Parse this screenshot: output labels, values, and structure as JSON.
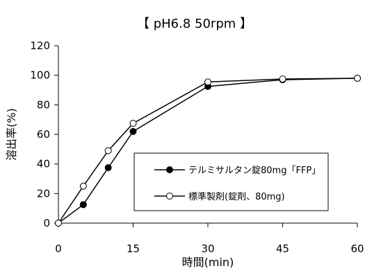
{
  "chart_data": {
    "type": "line",
    "title": "【  pH6.8   50rpm  】",
    "xlabel": "時間(min)",
    "ylabel": "溶出率(%)",
    "xlim": [
      0,
      60
    ],
    "ylim": [
      0,
      120
    ],
    "x_ticks": [
      "0",
      "15",
      "30",
      "45",
      "60"
    ],
    "y_ticks": [
      "0",
      "20",
      "40",
      "60",
      "80",
      "100",
      "120"
    ],
    "grid": false,
    "legend_position": "lower-right",
    "series": [
      {
        "name": "テルミサルタン錠80mg「FFP」",
        "marker": "filled-circle",
        "x": [
          0,
          5,
          10,
          15,
          30,
          45,
          60
        ],
        "y": [
          0,
          12.5,
          37.5,
          62,
          92.5,
          97,
          98
        ]
      },
      {
        "name": "標準製剤(錠剤、80mg)",
        "marker": "open-circle",
        "x": [
          0,
          5,
          10,
          15,
          30,
          45,
          60
        ],
        "y": [
          0,
          25,
          49,
          67.5,
          95.5,
          97.5,
          98
        ]
      }
    ]
  }
}
